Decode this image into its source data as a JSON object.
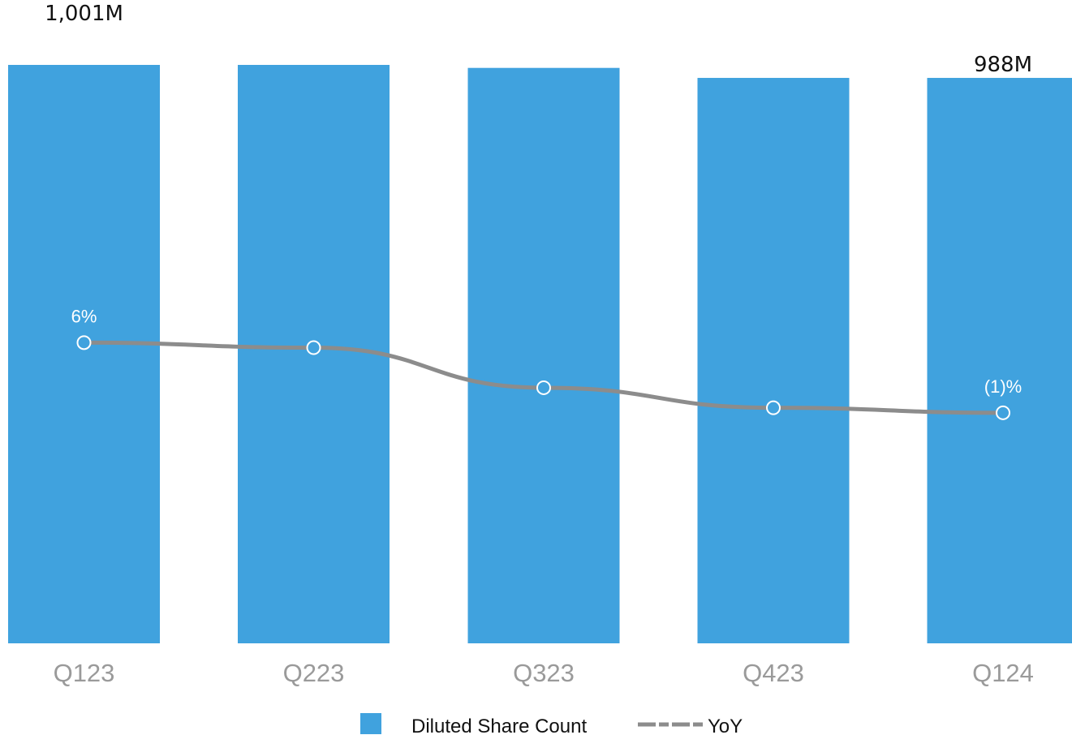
{
  "chart_data": {
    "type": "bar",
    "categories": [
      "Q123",
      "Q223",
      "Q323",
      "Q423",
      "Q124"
    ],
    "series": [
      {
        "name": "Diluted Share Count",
        "type": "bar",
        "values": [
          1001,
          1001,
          998,
          988,
          988
        ],
        "unit": "M",
        "color": "#40a2de"
      },
      {
        "name": "YoY",
        "type": "line",
        "values": [
          6,
          5.5,
          1.5,
          -0.5,
          -1
        ],
        "unit": "%",
        "color": "#8c8c8c"
      }
    ],
    "bar_value_labels": [
      {
        "index": 0,
        "text": "1,001M"
      },
      {
        "index": 4,
        "text": "988M"
      }
    ],
    "line_value_labels": [
      {
        "index": 0,
        "text": "6%"
      },
      {
        "index": 4,
        "text": "(1)%"
      }
    ],
    "ylim_bars": [
      0,
      1001
    ],
    "ylim_line": [
      -10,
      24
    ],
    "grid": false,
    "legend_position": "bottom-center",
    "legend": [
      {
        "label": "Diluted Share Count",
        "kind": "swatch",
        "color": "#40a2de"
      },
      {
        "label": "YoY",
        "kind": "dashed-line",
        "color": "#8c8c8c"
      }
    ],
    "colors": {
      "bar": "#40a2de",
      "line": "#8c8c8c",
      "tick_label": "#9a9a9a",
      "value_label": "#111111",
      "point_label": "#ffffff",
      "marker_fill": "#40a2de",
      "marker_stroke": "#ffffff"
    }
  }
}
